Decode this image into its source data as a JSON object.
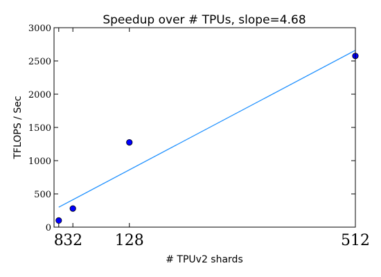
{
  "chart_data": {
    "type": "scatter",
    "title": "Speedup over # TPUs, slope=4.68",
    "xlabel": "# TPUv2 shards",
    "ylabel": "TFLOPS / Sec",
    "xlim": [
      0,
      512
    ],
    "ylim": [
      0,
      3000
    ],
    "x_ticks": [
      8,
      32,
      128,
      512
    ],
    "x_tick_labels": [
      "8",
      "32",
      "128",
      "512"
    ],
    "y_ticks": [
      0,
      500,
      1000,
      1500,
      2000,
      2500,
      3000
    ],
    "y_tick_labels": [
      "0",
      "500",
      "1000",
      "1500",
      "2000",
      "2500",
      "3000"
    ],
    "grid": false,
    "series": [
      {
        "x": [
          8,
          32,
          128,
          512
        ],
        "y": [
          100,
          280,
          1275,
          2575
        ],
        "marker_color": "#0000ff"
      }
    ],
    "fit_line": {
      "slope": 4.68,
      "x": [
        8,
        512
      ],
      "y": [
        300,
        2660
      ],
      "color": "#1e90ff"
    }
  }
}
